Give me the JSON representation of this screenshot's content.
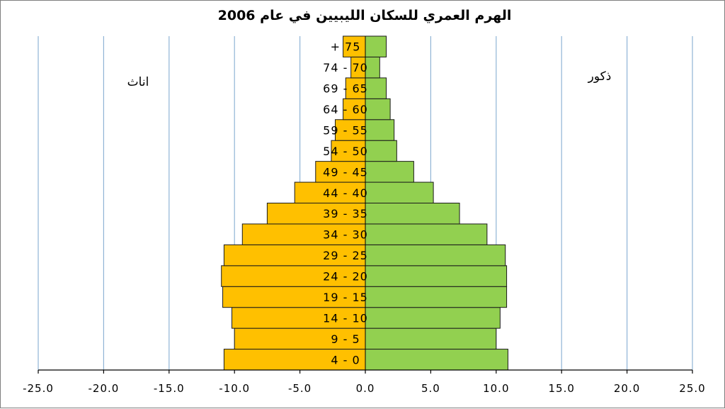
{
  "chart_data": {
    "type": "bar",
    "orientation": "horizontal",
    "title": "الهرم العمري للسكان الليبيين في عام 2006",
    "categories": [
      "4 - 0",
      "9 - 5",
      "14 - 10",
      "19 - 15",
      "24 - 20",
      "29 - 25",
      "34 - 30",
      "39 - 35",
      "44 - 40",
      "49 - 45",
      "54 - 50",
      "59 - 55",
      "64 - 60",
      "69 - 65",
      "74 - 70",
      "+ 75"
    ],
    "series": [
      {
        "name": "اناث",
        "color": "#FFC000",
        "values": [
          -10.8,
          -10.0,
          -10.2,
          -10.9,
          -11.0,
          -10.8,
          -9.4,
          -7.5,
          -5.4,
          -3.8,
          -2.6,
          -2.3,
          -1.7,
          -1.5,
          -1.1,
          -1.7
        ]
      },
      {
        "name": "ذكور",
        "color": "#92D050",
        "values": [
          10.9,
          10.0,
          10.3,
          10.8,
          10.8,
          10.7,
          9.3,
          7.2,
          5.2,
          3.7,
          2.4,
          2.2,
          1.9,
          1.6,
          1.1,
          1.6
        ]
      }
    ],
    "x_ticks": [
      "-25.0",
      "-20.0",
      "-15.0",
      "-10.0",
      "-5.0",
      "0.0",
      "5.0",
      "10.0",
      "15.0",
      "20.0",
      "25.0"
    ],
    "xlim": [
      -25,
      25
    ],
    "xgrid": true,
    "legend": "none"
  }
}
